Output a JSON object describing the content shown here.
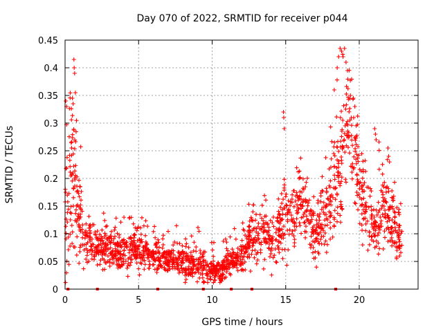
{
  "chart_data": {
    "type": "scatter",
    "title": "Day 070 of 2022, SRMTID for receiver p044",
    "xlabel": "GPS time / hours",
    "ylabel": "SRMTID / TECUs",
    "xlim": [
      0,
      24
    ],
    "ylim": [
      0,
      0.45
    ],
    "xticks": [
      0,
      5,
      10,
      15,
      20
    ],
    "yticks": [
      0,
      0.05,
      0.1,
      0.15,
      0.2,
      0.25,
      0.3,
      0.35,
      0.4,
      0.45
    ],
    "xtick_labels": [
      "0",
      "5",
      "10",
      "15",
      "20"
    ],
    "ytick_labels": [
      "0",
      "0.05",
      "0.1",
      "0.15",
      "0.2",
      "0.25",
      "0.3",
      "0.35",
      "0.4",
      "0.45"
    ],
    "grid": true,
    "marker": "+",
    "color": "#ff0000",
    "envelope": {
      "description": "approximate median / spread / peak of SRMTID vs hour",
      "hours": [
        0.0,
        0.3,
        0.6,
        1.0,
        1.5,
        2.0,
        3.0,
        4.0,
        5.0,
        6.0,
        7.0,
        8.0,
        9.0,
        10.0,
        10.5,
        11.0,
        11.5,
        12.0,
        12.5,
        13.0,
        13.5,
        14.0,
        14.5,
        14.8,
        15.0,
        15.5,
        16.0,
        16.5,
        17.0,
        17.5,
        18.0,
        18.5,
        19.0,
        19.3,
        19.6,
        20.0,
        20.3,
        20.6,
        21.0,
        21.3,
        21.6,
        22.0,
        22.3,
        22.6,
        22.9
      ],
      "median": [
        0.12,
        0.2,
        0.2,
        0.12,
        0.09,
        0.08,
        0.075,
        0.07,
        0.07,
        0.065,
        0.055,
        0.05,
        0.045,
        0.035,
        0.03,
        0.045,
        0.05,
        0.06,
        0.085,
        0.095,
        0.1,
        0.09,
        0.1,
        0.13,
        0.14,
        0.13,
        0.15,
        0.13,
        0.1,
        0.12,
        0.16,
        0.2,
        0.25,
        0.3,
        0.27,
        0.2,
        0.16,
        0.13,
        0.1,
        0.12,
        0.16,
        0.13,
        0.12,
        0.1,
        0.08
      ],
      "spread": [
        0.08,
        0.1,
        0.1,
        0.06,
        0.03,
        0.025,
        0.025,
        0.025,
        0.025,
        0.025,
        0.02,
        0.02,
        0.02,
        0.015,
        0.015,
        0.015,
        0.015,
        0.02,
        0.03,
        0.035,
        0.035,
        0.03,
        0.04,
        0.05,
        0.05,
        0.045,
        0.05,
        0.045,
        0.04,
        0.05,
        0.06,
        0.07,
        0.08,
        0.08,
        0.07,
        0.06,
        0.05,
        0.04,
        0.035,
        0.045,
        0.05,
        0.045,
        0.04,
        0.035,
        0.025
      ],
      "peak": [
        0.35,
        0.34,
        0.42,
        0.29,
        0.15,
        0.14,
        0.14,
        0.13,
        0.13,
        0.13,
        0.12,
        0.12,
        0.12,
        0.1,
        0.08,
        0.1,
        0.11,
        0.14,
        0.16,
        0.17,
        0.18,
        0.16,
        0.17,
        0.32,
        0.21,
        0.22,
        0.25,
        0.24,
        0.2,
        0.23,
        0.33,
        0.4,
        0.44,
        0.44,
        0.34,
        0.33,
        0.26,
        0.22,
        0.2,
        0.29,
        0.22,
        0.26,
        0.21,
        0.17,
        0.16
      ]
    },
    "spikes": [
      {
        "x": 0.05,
        "y": 0.34
      },
      {
        "x": 0.1,
        "y": 0.33
      },
      {
        "x": 0.5,
        "y": 0.345
      },
      {
        "x": 0.55,
        "y": 0.335
      },
      {
        "x": 0.6,
        "y": 0.415
      },
      {
        "x": 0.62,
        "y": 0.4
      },
      {
        "x": 0.65,
        "y": 0.39
      },
      {
        "x": 0.7,
        "y": 0.355
      },
      {
        "x": 14.85,
        "y": 0.32
      },
      {
        "x": 14.87,
        "y": 0.31
      },
      {
        "x": 14.9,
        "y": 0.29
      },
      {
        "x": 18.5,
        "y": 0.4
      },
      {
        "x": 18.6,
        "y": 0.42
      },
      {
        "x": 18.7,
        "y": 0.435
      },
      {
        "x": 18.8,
        "y": 0.43
      },
      {
        "x": 18.9,
        "y": 0.42
      },
      {
        "x": 19.0,
        "y": 0.435
      },
      {
        "x": 19.1,
        "y": 0.41
      },
      {
        "x": 19.2,
        "y": 0.395
      },
      {
        "x": 18.3,
        "y": 0.36
      },
      {
        "x": 19.4,
        "y": 0.35
      },
      {
        "x": 19.6,
        "y": 0.345
      },
      {
        "x": 19.7,
        "y": 0.33
      },
      {
        "x": 21.05,
        "y": 0.29
      },
      {
        "x": 21.1,
        "y": 0.28
      },
      {
        "x": 21.15,
        "y": 0.27
      },
      {
        "x": 21.95,
        "y": 0.255
      },
      {
        "x": 22.0,
        "y": 0.24
      }
    ],
    "gap_markers_hours": [
      0.2,
      2.2,
      6.3,
      9.4,
      11.3,
      12.7,
      18.4
    ]
  }
}
